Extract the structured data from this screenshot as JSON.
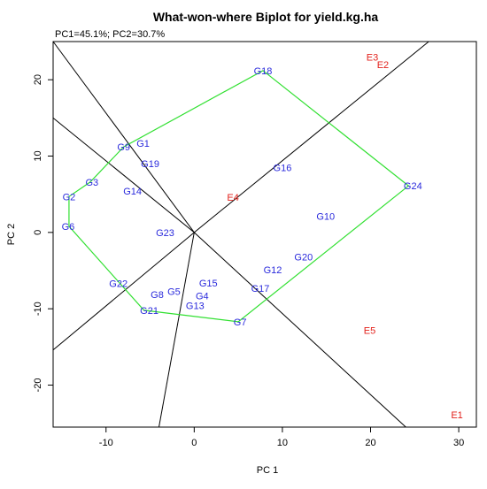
{
  "chart_data": {
    "type": "scatter",
    "title": "What-won-where Biplot for yield.kg.ha",
    "subtitle": "PC1=45.1%; PC2=30.7%",
    "xlabel": "PC 1",
    "ylabel": "PC 2",
    "xlim": [
      -16,
      32
    ],
    "ylim": [
      -25.5,
      25
    ],
    "xticks": [
      -10,
      0,
      10,
      20,
      30
    ],
    "yticks": [
      -20,
      -10,
      0,
      10,
      20
    ],
    "grid": false,
    "genotype_color": "#2a2adc",
    "environment_color": "#e3221c",
    "hull_color": "#32e032",
    "sector_line_color": "#000000",
    "genotypes": [
      {
        "label": "G18",
        "x": 7.8,
        "y": 21.2
      },
      {
        "label": "G1",
        "x": -5.8,
        "y": 11.7
      },
      {
        "label": "G9",
        "x": -8,
        "y": 11.2
      },
      {
        "label": "G19",
        "x": -5,
        "y": 9
      },
      {
        "label": "G16",
        "x": 10,
        "y": 8.5
      },
      {
        "label": "G3",
        "x": -11.6,
        "y": 6.6
      },
      {
        "label": "G24",
        "x": 24.8,
        "y": 6.1
      },
      {
        "label": "G14",
        "x": -7,
        "y": 5.4
      },
      {
        "label": "G2",
        "x": -14.2,
        "y": 4.7
      },
      {
        "label": "G10",
        "x": 14.9,
        "y": 2.1
      },
      {
        "label": "G6",
        "x": -14.3,
        "y": 0.8
      },
      {
        "label": "G23",
        "x": -3.3,
        "y": 0
      },
      {
        "label": "G20",
        "x": 12.4,
        "y": -3.2
      },
      {
        "label": "G12",
        "x": 8.9,
        "y": -4.9
      },
      {
        "label": "G22",
        "x": -8.6,
        "y": -6.7
      },
      {
        "label": "G15",
        "x": 1.6,
        "y": -6.6
      },
      {
        "label": "G17",
        "x": 7.5,
        "y": -7.3
      },
      {
        "label": "G5",
        "x": -2.3,
        "y": -7.7
      },
      {
        "label": "G8",
        "x": -4.2,
        "y": -8.1
      },
      {
        "label": "G4",
        "x": 0.9,
        "y": -8.3
      },
      {
        "label": "G13",
        "x": 0.1,
        "y": -9.6
      },
      {
        "label": "G21",
        "x": -5.1,
        "y": -10.2
      },
      {
        "label": "G7",
        "x": 5.2,
        "y": -11.7
      }
    ],
    "environments": [
      {
        "label": "E3",
        "x": 20.2,
        "y": 23
      },
      {
        "label": "E2",
        "x": 21.4,
        "y": 22
      },
      {
        "label": "E4",
        "x": 4.4,
        "y": 4.6
      },
      {
        "label": "E5",
        "x": 19.9,
        "y": -12.8
      },
      {
        "label": "E1",
        "x": 29.8,
        "y": -23.9
      }
    ],
    "hull": [
      {
        "x": 7.8,
        "y": 21.2
      },
      {
        "x": 24.3,
        "y": 6.1
      },
      {
        "x": 5,
        "y": -11.7
      },
      {
        "x": -5.7,
        "y": -10.2
      },
      {
        "x": -14.2,
        "y": 0.8
      },
      {
        "x": -14.2,
        "y": 4.7
      },
      {
        "x": -11.8,
        "y": 6.6
      },
      {
        "x": -8,
        "y": 11.2
      }
    ],
    "sector_rays": [
      {
        "x": -16,
        "y": 25
      },
      {
        "x": -16,
        "y": 15
      },
      {
        "x": -16,
        "y": -15.4
      },
      {
        "x": -4,
        "y": -25.5
      },
      {
        "x": 24,
        "y": -25.5
      },
      {
        "x": 26.6,
        "y": 25
      }
    ]
  }
}
